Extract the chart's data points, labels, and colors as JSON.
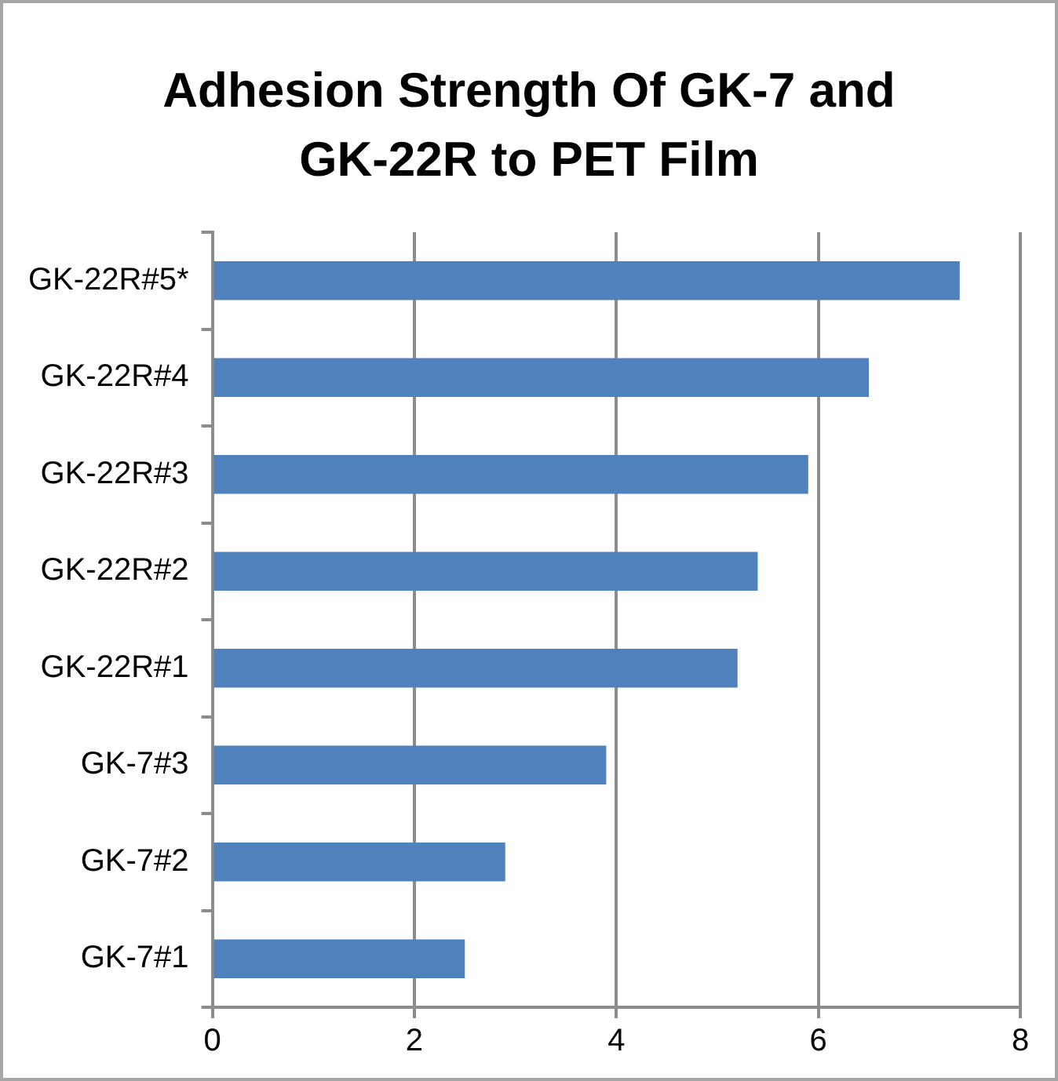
{
  "chart_data": {
    "type": "bar",
    "orientation": "horizontal",
    "title": "Adhesion Strength Of GK-7 and GK-22R to PET Film",
    "categories": [
      "GK-22R#5*",
      "GK-22R#4",
      "GK-22R#3",
      "GK-22R#2",
      "GK-22R#1",
      "GK-7#3",
      "GK-7#2",
      "GK-7#1"
    ],
    "values": [
      7.4,
      6.5,
      5.9,
      5.4,
      5.2,
      3.9,
      2.9,
      2.5
    ],
    "color": "#4f81bd",
    "xlim": [
      0,
      8
    ],
    "xticks": [
      0,
      2,
      4,
      6,
      8
    ],
    "grid": "x",
    "legend": false
  }
}
